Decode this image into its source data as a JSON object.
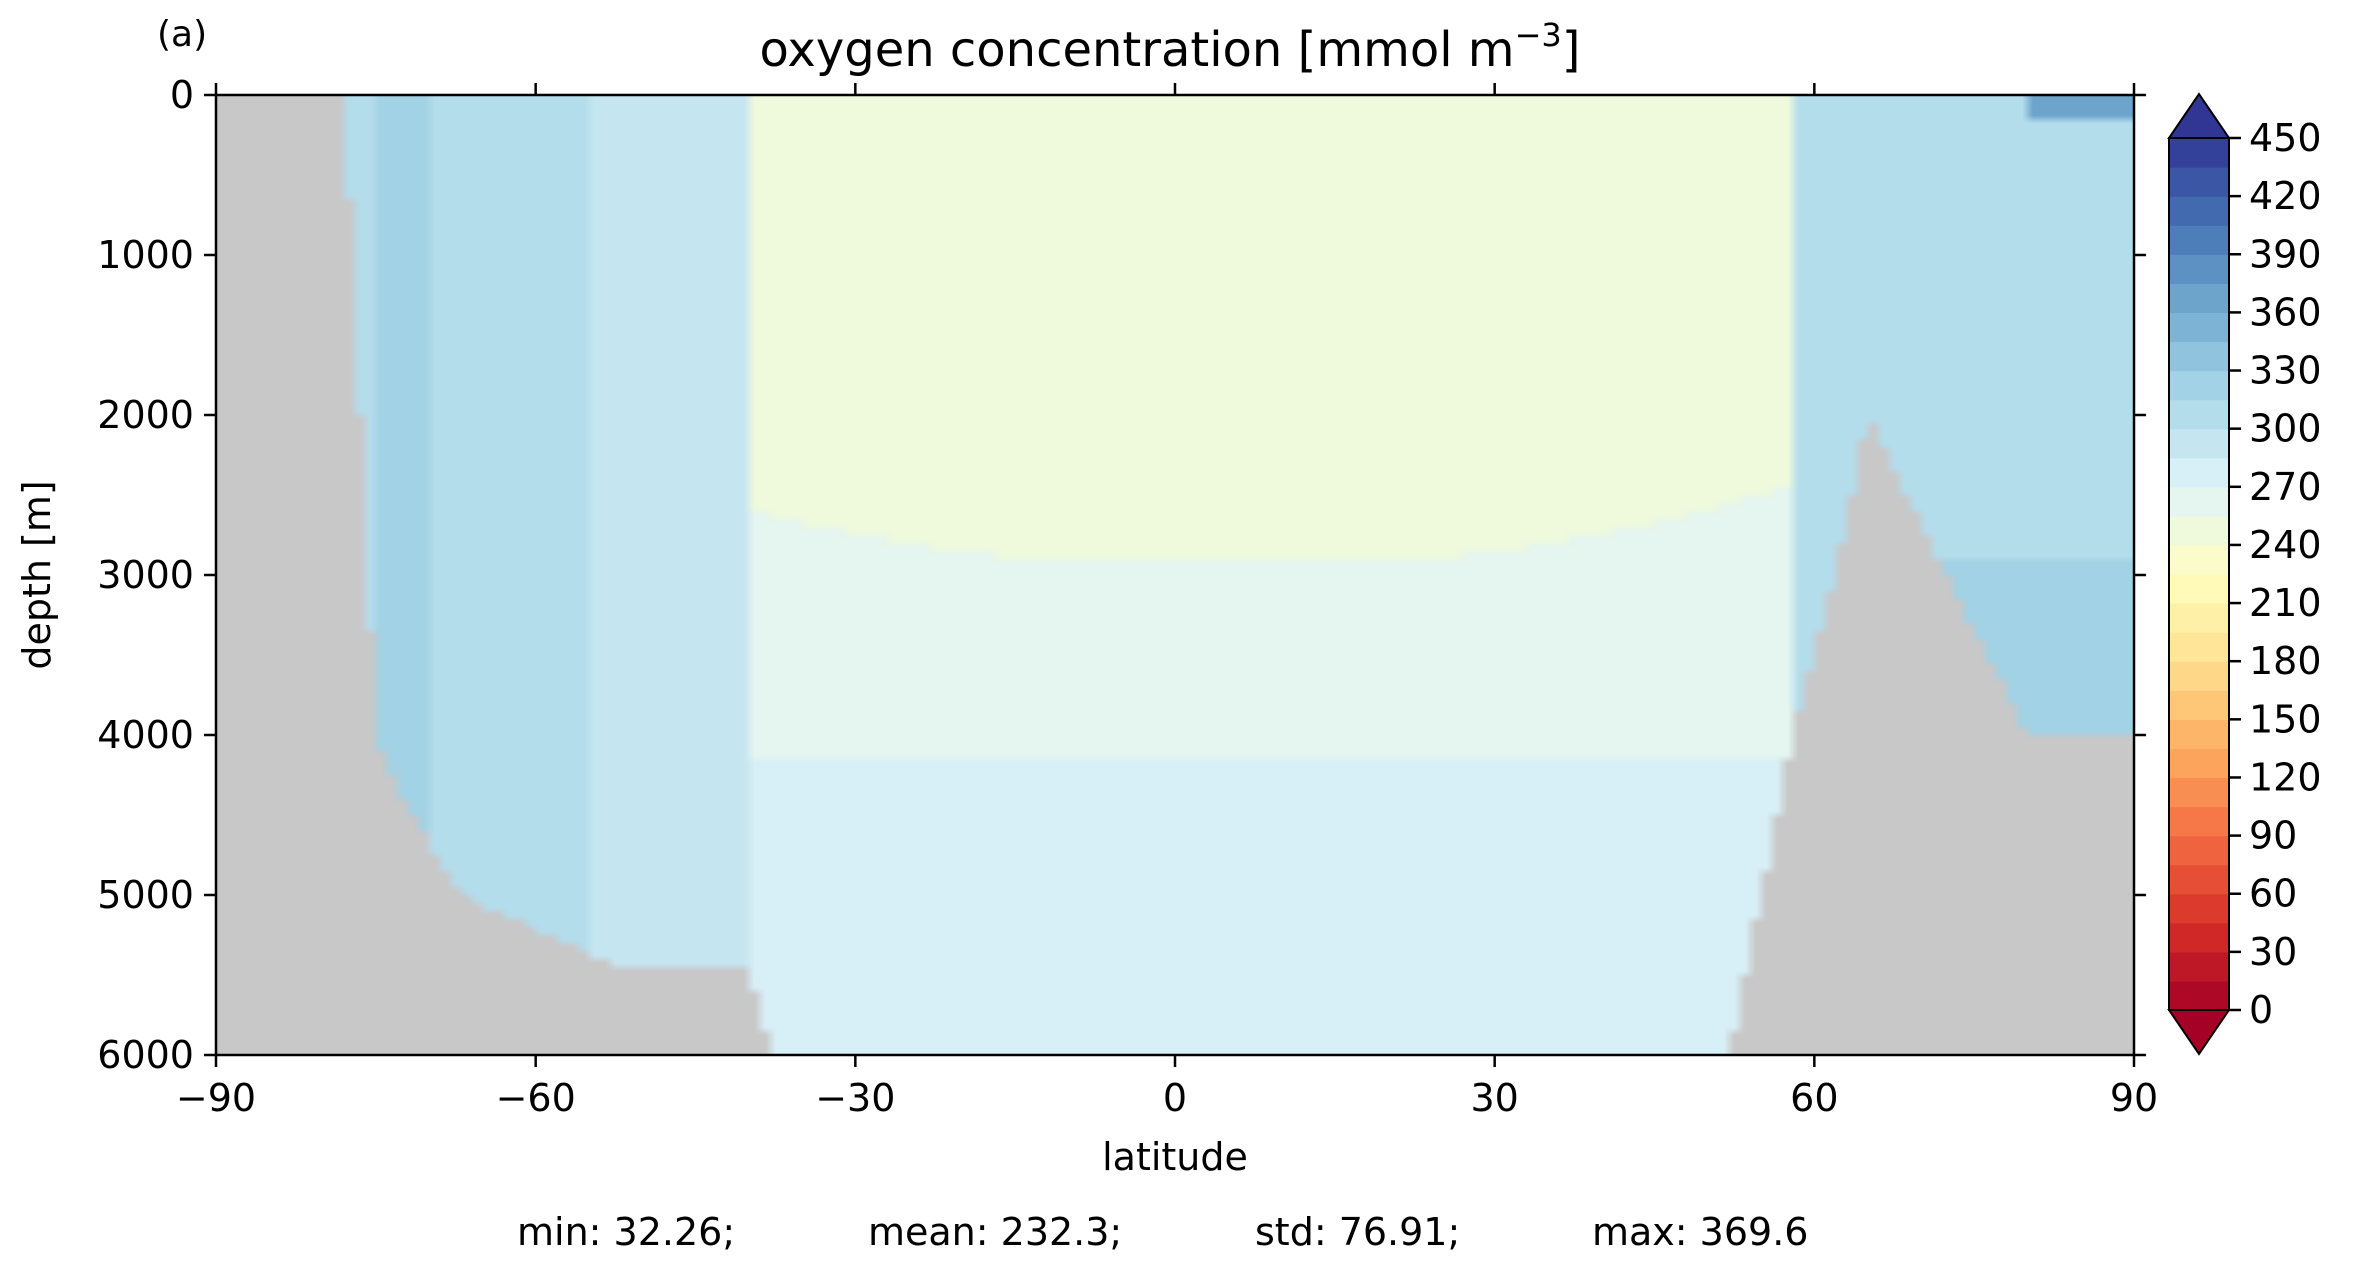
{
  "chart_data": {
    "type": "heatmap",
    "panel_label": "(a)",
    "title_main": "oxygen concentration [mmol m",
    "title_sup": "−3",
    "title_end": "]",
    "xlabel": "latitude",
    "ylabel": "depth [m]",
    "xlim": [
      -90,
      90
    ],
    "ylim": [
      6000,
      0
    ],
    "y_inverted": true,
    "x_ticks": [
      -90,
      -60,
      -30,
      0,
      30,
      60,
      90
    ],
    "x_tick_labels": [
      "−90",
      "−60",
      "−30",
      "0",
      "30",
      "60",
      "90"
    ],
    "y_ticks": [
      0,
      1000,
      2000,
      3000,
      4000,
      5000,
      6000
    ],
    "y_tick_labels": [
      "0",
      "1000",
      "2000",
      "3000",
      "4000",
      "5000",
      "6000"
    ],
    "colorbar": {
      "levels_min": 0,
      "levels_max": 450,
      "level_step": 15,
      "extend": "both",
      "tick_values": [
        0,
        30,
        60,
        90,
        120,
        150,
        180,
        210,
        240,
        270,
        300,
        330,
        360,
        390,
        420,
        450
      ],
      "tick_labels": [
        "0",
        "30",
        "60",
        "90",
        "120",
        "150",
        "180",
        "210",
        "240",
        "270",
        "300",
        "330",
        "360",
        "390",
        "420",
        "450"
      ],
      "colormap": "RdYlBu"
    },
    "land_color": "#c8c8c8",
    "field_description_points": {
      "minimum_core_lat": 5,
      "minimum_core_depth": 700,
      "bottom_depth_profile_lat": [
        -90,
        -78,
        -75,
        -72,
        -67,
        -52,
        -40,
        -38,
        52,
        55,
        58,
        62,
        65,
        72,
        80,
        90
      ],
      "bottom_depth_profile_m": [
        0,
        0,
        4000,
        4450,
        5000,
        5450,
        5450,
        6000,
        6000,
        5000,
        4000,
        2950,
        2000,
        2950,
        4000,
        4000
      ]
    },
    "stats": {
      "min": "min: 32.26;",
      "mean": "mean: 232.3;",
      "std": "std: 76.91;",
      "max": "max: 369.6"
    }
  }
}
